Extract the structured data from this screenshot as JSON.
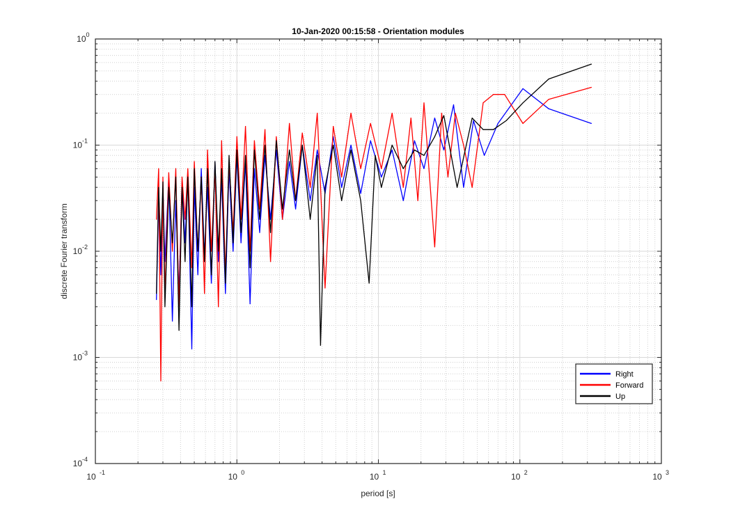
{
  "chart_data": {
    "type": "line",
    "title": "10-Jan-2020 00:15:58 - Orientation modules",
    "xlabel": "period [s]",
    "ylabel": "discrete Fourier transform",
    "xscale": "log",
    "yscale": "log",
    "xlim": [
      0.1,
      1000
    ],
    "ylim": [
      0.0001,
      1
    ],
    "grid": true,
    "minor_grid": true,
    "legend_position": "bottom-right",
    "x_ticks": [
      {
        "value": 0.1,
        "base": "10",
        "exp": "-1"
      },
      {
        "value": 1,
        "base": "10",
        "exp": "0"
      },
      {
        "value": 10,
        "base": "10",
        "exp": "1"
      },
      {
        "value": 100,
        "base": "10",
        "exp": "2"
      },
      {
        "value": 1000,
        "base": "10",
        "exp": "3"
      }
    ],
    "y_ticks": [
      {
        "value": 0.0001,
        "base": "10",
        "exp": "-4"
      },
      {
        "value": 0.001,
        "base": "10",
        "exp": "-3"
      },
      {
        "value": 0.01,
        "base": "10",
        "exp": "-2"
      },
      {
        "value": 0.1,
        "base": "10",
        "exp": "-1"
      },
      {
        "value": 1,
        "base": "10",
        "exp": "0"
      }
    ],
    "series": [
      {
        "name": "Right",
        "color": "#0000ff",
        "points": [
          [
            0.27,
            0.0035
          ],
          [
            0.28,
            0.03
          ],
          [
            0.29,
            0.006
          ],
          [
            0.3,
            0.04
          ],
          [
            0.31,
            0.008
          ],
          [
            0.33,
            0.05
          ],
          [
            0.35,
            0.0022
          ],
          [
            0.37,
            0.03
          ],
          [
            0.39,
            0.004
          ],
          [
            0.41,
            0.045
          ],
          [
            0.43,
            0.012
          ],
          [
            0.45,
            0.055
          ],
          [
            0.48,
            0.0012
          ],
          [
            0.5,
            0.04
          ],
          [
            0.53,
            0.006
          ],
          [
            0.56,
            0.06
          ],
          [
            0.59,
            0.009
          ],
          [
            0.62,
            0.04
          ],
          [
            0.66,
            0.005
          ],
          [
            0.7,
            0.07
          ],
          [
            0.74,
            0.008
          ],
          [
            0.78,
            0.05
          ],
          [
            0.83,
            0.004
          ],
          [
            0.88,
            0.06
          ],
          [
            0.94,
            0.01
          ],
          [
            1.0,
            0.08
          ],
          [
            1.07,
            0.012
          ],
          [
            1.15,
            0.07
          ],
          [
            1.24,
            0.0032
          ],
          [
            1.33,
            0.06
          ],
          [
            1.45,
            0.015
          ],
          [
            1.58,
            0.08
          ],
          [
            1.73,
            0.02
          ],
          [
            1.9,
            0.09
          ],
          [
            2.1,
            0.02
          ],
          [
            2.35,
            0.07
          ],
          [
            2.6,
            0.025
          ],
          [
            2.9,
            0.1
          ],
          [
            3.3,
            0.03
          ],
          [
            3.7,
            0.09
          ],
          [
            4.2,
            0.035
          ],
          [
            4.8,
            0.12
          ],
          [
            5.5,
            0.04
          ],
          [
            6.4,
            0.1
          ],
          [
            7.5,
            0.035
          ],
          [
            8.8,
            0.11
          ],
          [
            10.5,
            0.05
          ],
          [
            12.5,
            0.09
          ],
          [
            15,
            0.03
          ],
          [
            18,
            0.11
          ],
          [
            21,
            0.06
          ],
          [
            25,
            0.18
          ],
          [
            29,
            0.09
          ],
          [
            34,
            0.24
          ],
          [
            40,
            0.04
          ],
          [
            47,
            0.17
          ],
          [
            56,
            0.08
          ],
          [
            70,
            0.16
          ],
          [
            105,
            0.34
          ],
          [
            160,
            0.22
          ],
          [
            320,
            0.16
          ]
        ]
      },
      {
        "name": "Forward",
        "color": "#ff0000",
        "points": [
          [
            0.27,
            0.02
          ],
          [
            0.28,
            0.06
          ],
          [
            0.29,
            0.0006
          ],
          [
            0.3,
            0.05
          ],
          [
            0.31,
            0.004
          ],
          [
            0.33,
            0.055
          ],
          [
            0.35,
            0.01
          ],
          [
            0.37,
            0.06
          ],
          [
            0.39,
            0.003
          ],
          [
            0.41,
            0.05
          ],
          [
            0.43,
            0.02
          ],
          [
            0.45,
            0.06
          ],
          [
            0.48,
            0.007
          ],
          [
            0.5,
            0.07
          ],
          [
            0.53,
            0.01
          ],
          [
            0.56,
            0.05
          ],
          [
            0.59,
            0.004
          ],
          [
            0.62,
            0.09
          ],
          [
            0.66,
            0.01
          ],
          [
            0.7,
            0.06
          ],
          [
            0.74,
            0.003
          ],
          [
            0.78,
            0.11
          ],
          [
            0.83,
            0.006
          ],
          [
            0.88,
            0.07
          ],
          [
            0.94,
            0.015
          ],
          [
            1.0,
            0.12
          ],
          [
            1.07,
            0.02
          ],
          [
            1.15,
            0.15
          ],
          [
            1.24,
            0.01
          ],
          [
            1.33,
            0.11
          ],
          [
            1.45,
            0.025
          ],
          [
            1.58,
            0.14
          ],
          [
            1.73,
            0.008
          ],
          [
            1.9,
            0.12
          ],
          [
            2.1,
            0.02
          ],
          [
            2.35,
            0.16
          ],
          [
            2.6,
            0.03
          ],
          [
            2.9,
            0.13
          ],
          [
            3.3,
            0.04
          ],
          [
            3.7,
            0.2
          ],
          [
            4.2,
            0.0045
          ],
          [
            4.8,
            0.15
          ],
          [
            5.5,
            0.05
          ],
          [
            6.4,
            0.2
          ],
          [
            7.5,
            0.06
          ],
          [
            8.8,
            0.16
          ],
          [
            10.5,
            0.06
          ],
          [
            12.5,
            0.2
          ],
          [
            15,
            0.04
          ],
          [
            17,
            0.18
          ],
          [
            19,
            0.03
          ],
          [
            21,
            0.25
          ],
          [
            23,
            0.05
          ],
          [
            25,
            0.011
          ],
          [
            28,
            0.2
          ],
          [
            31,
            0.05
          ],
          [
            35,
            0.2
          ],
          [
            40,
            0.1
          ],
          [
            46,
            0.04
          ],
          [
            55,
            0.25
          ],
          [
            65,
            0.3
          ],
          [
            78,
            0.3
          ],
          [
            105,
            0.16
          ],
          [
            160,
            0.27
          ],
          [
            320,
            0.35
          ]
        ]
      },
      {
        "name": "Up",
        "color": "#000000",
        "points": [
          [
            0.27,
            0.004
          ],
          [
            0.28,
            0.04
          ],
          [
            0.29,
            0.01
          ],
          [
            0.3,
            0.045
          ],
          [
            0.31,
            0.003
          ],
          [
            0.33,
            0.04
          ],
          [
            0.35,
            0.012
          ],
          [
            0.37,
            0.05
          ],
          [
            0.39,
            0.0018
          ],
          [
            0.41,
            0.04
          ],
          [
            0.43,
            0.008
          ],
          [
            0.45,
            0.05
          ],
          [
            0.48,
            0.003
          ],
          [
            0.5,
            0.06
          ],
          [
            0.53,
            0.01
          ],
          [
            0.56,
            0.05
          ],
          [
            0.59,
            0.008
          ],
          [
            0.62,
            0.06
          ],
          [
            0.66,
            0.006
          ],
          [
            0.7,
            0.07
          ],
          [
            0.74,
            0.01
          ],
          [
            0.78,
            0.06
          ],
          [
            0.83,
            0.005
          ],
          [
            0.88,
            0.08
          ],
          [
            0.94,
            0.012
          ],
          [
            1.0,
            0.09
          ],
          [
            1.07,
            0.015
          ],
          [
            1.15,
            0.08
          ],
          [
            1.24,
            0.007
          ],
          [
            1.33,
            0.09
          ],
          [
            1.45,
            0.02
          ],
          [
            1.58,
            0.1
          ],
          [
            1.73,
            0.015
          ],
          [
            1.9,
            0.11
          ],
          [
            2.1,
            0.025
          ],
          [
            2.35,
            0.09
          ],
          [
            2.6,
            0.03
          ],
          [
            2.9,
            0.1
          ],
          [
            3.3,
            0.02
          ],
          [
            3.7,
            0.08
          ],
          [
            3.9,
            0.0013
          ],
          [
            4.2,
            0.04
          ],
          [
            4.8,
            0.1
          ],
          [
            5.5,
            0.03
          ],
          [
            6.4,
            0.09
          ],
          [
            7.5,
            0.03
          ],
          [
            8.6,
            0.005
          ],
          [
            9.5,
            0.08
          ],
          [
            10.5,
            0.04
          ],
          [
            12.5,
            0.1
          ],
          [
            15,
            0.06
          ],
          [
            18,
            0.09
          ],
          [
            21,
            0.08
          ],
          [
            25,
            0.12
          ],
          [
            29,
            0.19
          ],
          [
            36,
            0.04
          ],
          [
            46,
            0.18
          ],
          [
            55,
            0.14
          ],
          [
            65,
            0.14
          ],
          [
            80,
            0.17
          ],
          [
            105,
            0.25
          ],
          [
            160,
            0.42
          ],
          [
            320,
            0.58
          ]
        ]
      }
    ]
  }
}
